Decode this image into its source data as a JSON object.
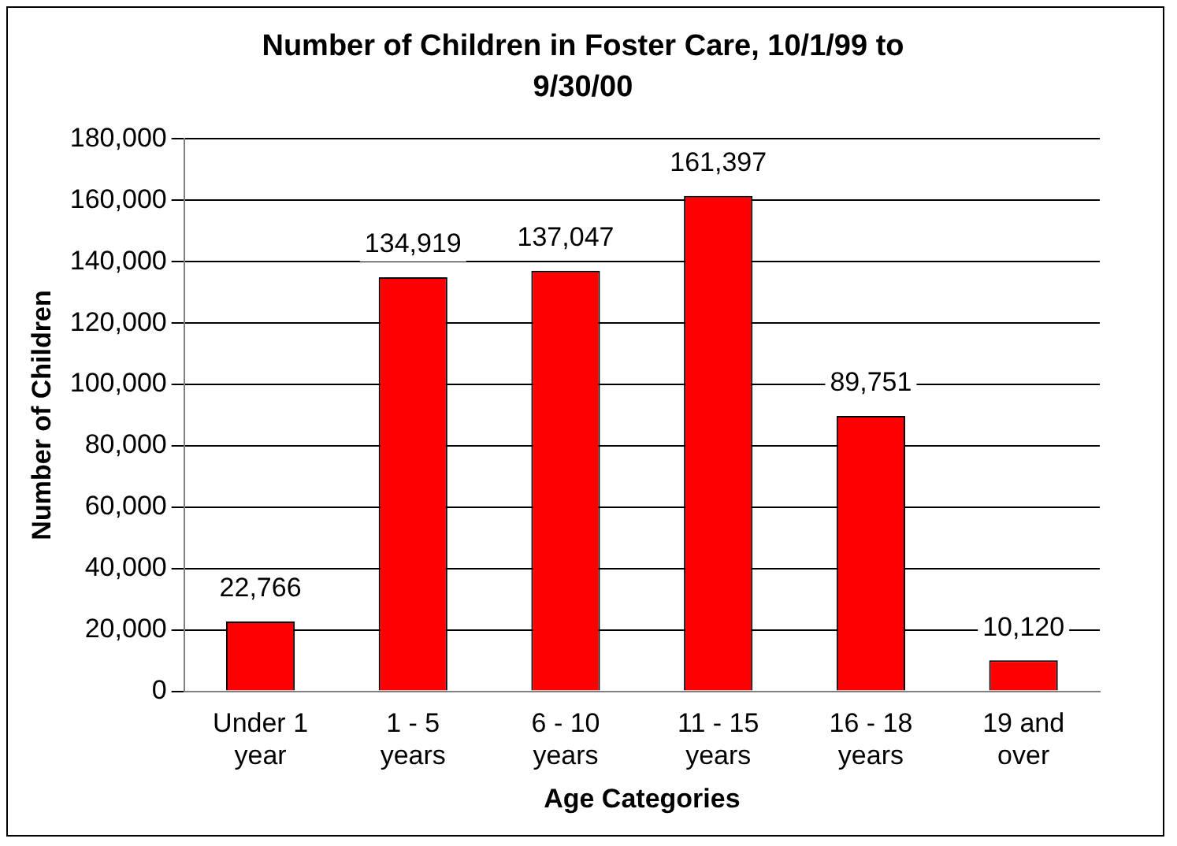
{
  "chart_data": {
    "type": "bar",
    "title": "Number of Children in Foster Care, 10/1/99 to 9/30/00",
    "xlabel": "Age Categories",
    "ylabel": "Number of Children",
    "categories": [
      "Under 1 year",
      "1 - 5 years",
      "6 - 10 years",
      "11 - 15 years",
      "16 - 18 years",
      "19 and over"
    ],
    "values": [
      22766,
      134919,
      137047,
      161397,
      89751,
      10120
    ],
    "value_labels": [
      "22,766",
      "134,919",
      "137,047",
      "161,397",
      "89,751",
      "10,120"
    ],
    "color": "#ff0000",
    "ylim": [
      0,
      180000
    ],
    "yticks": [
      0,
      {
        "value": 20000,
        "label": "20,000"
      },
      {
        "value": 40000,
        "label": "40,000"
      },
      {
        "value": 60000,
        "label": "60,000"
      },
      {
        "value": 80000,
        "label": "80,000"
      },
      {
        "value": 100000,
        "label": "100,000"
      },
      {
        "value": 120000,
        "label": "120,000"
      },
      {
        "value": 140000,
        "label": "140,000"
      },
      {
        "value": 160000,
        "label": "160,000"
      },
      {
        "value": 180000,
        "label": "180,000"
      }
    ],
    "grid": "y"
  }
}
